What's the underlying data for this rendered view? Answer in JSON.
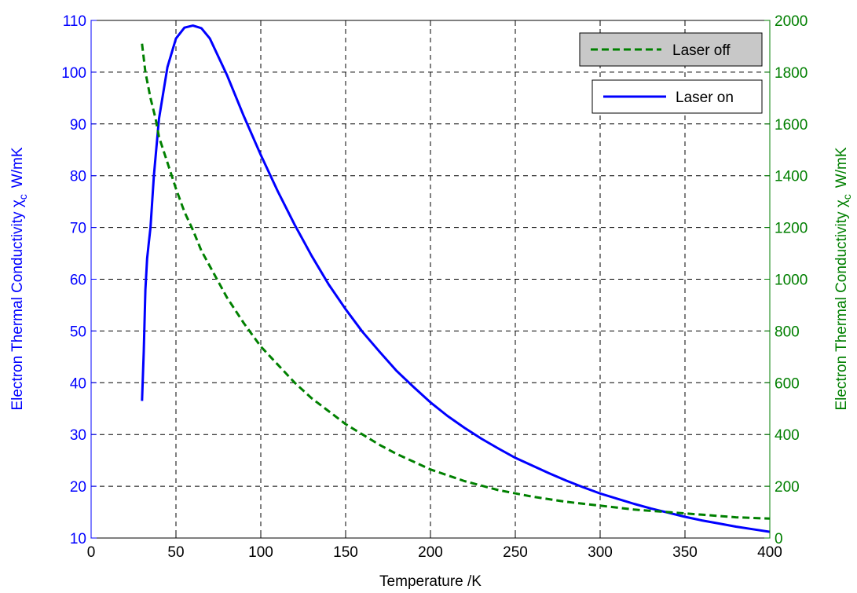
{
  "chart_data": {
    "type": "line",
    "xlabel": "Temperature /K",
    "ylabel_left": "Electron Thermal Conductivity χ",
    "ylabel_left_sub": "c",
    "ylabel_left_unit": "W/mK",
    "ylabel_right": "Electron Thermal Conductivity χ",
    "ylabel_right_sub": "c",
    "ylabel_right_unit": "W/mK",
    "xlim": [
      0,
      400
    ],
    "ylim_left": [
      10,
      110
    ],
    "ylim_right": [
      0,
      2000
    ],
    "xticks": [
      0,
      50,
      100,
      150,
      200,
      250,
      300,
      350,
      400
    ],
    "yticks_left": [
      10,
      20,
      30,
      40,
      50,
      60,
      70,
      80,
      90,
      100,
      110
    ],
    "yticks_right": [
      0,
      200,
      400,
      600,
      800,
      1000,
      1200,
      1400,
      1600,
      1800,
      2000
    ],
    "grid": true,
    "legend_placement": "top-right",
    "colors": {
      "left_axis": "#0000ff",
      "right_axis": "#007f00",
      "laser_on": "#0000ff",
      "laser_off": "#008000",
      "grid": "#000000"
    },
    "series": [
      {
        "name": "Laser on",
        "axis": "left",
        "style": "solid",
        "x": [
          30,
          31,
          32,
          33,
          34,
          35,
          37,
          40,
          45,
          50,
          55,
          60,
          65,
          70,
          80,
          90,
          100,
          110,
          120,
          130,
          140,
          150,
          160,
          170,
          180,
          190,
          200,
          210,
          220,
          230,
          240,
          250,
          260,
          270,
          280,
          290,
          300,
          310,
          320,
          330,
          340,
          350,
          360,
          370,
          380,
          390,
          400
        ],
        "y": [
          36.5,
          46,
          58,
          64,
          67,
          70,
          80,
          91,
          101,
          106.5,
          108.6,
          109,
          108.5,
          106.5,
          99.5,
          91.5,
          84,
          77,
          70.5,
          64.5,
          59,
          54.2,
          49.8,
          46,
          42.3,
          39.2,
          36.2,
          33.6,
          31.3,
          29.2,
          27.3,
          25.5,
          24,
          22.5,
          21.1,
          19.8,
          18.6,
          17.6,
          16.6,
          15.7,
          14.9,
          14.1,
          13.4,
          12.8,
          12.2,
          11.7,
          11.2
        ]
      },
      {
        "name": "Laser off",
        "axis": "right",
        "style": "dashed",
        "x": [
          30,
          32,
          35,
          38,
          40,
          45,
          50,
          55,
          60,
          65,
          70,
          80,
          90,
          100,
          110,
          120,
          130,
          140,
          150,
          160,
          170,
          180,
          190,
          200,
          220,
          240,
          260,
          280,
          300,
          320,
          340,
          360,
          380,
          400
        ],
        "y": [
          1910,
          1800,
          1700,
          1620,
          1550,
          1450,
          1350,
          1260,
          1190,
          1110,
          1050,
          930,
          830,
          740,
          670,
          600,
          540,
          490,
          440,
          400,
          360,
          325,
          295,
          265,
          220,
          185,
          160,
          140,
          125,
          110,
          100,
          90,
          80,
          75
        ]
      }
    ]
  }
}
